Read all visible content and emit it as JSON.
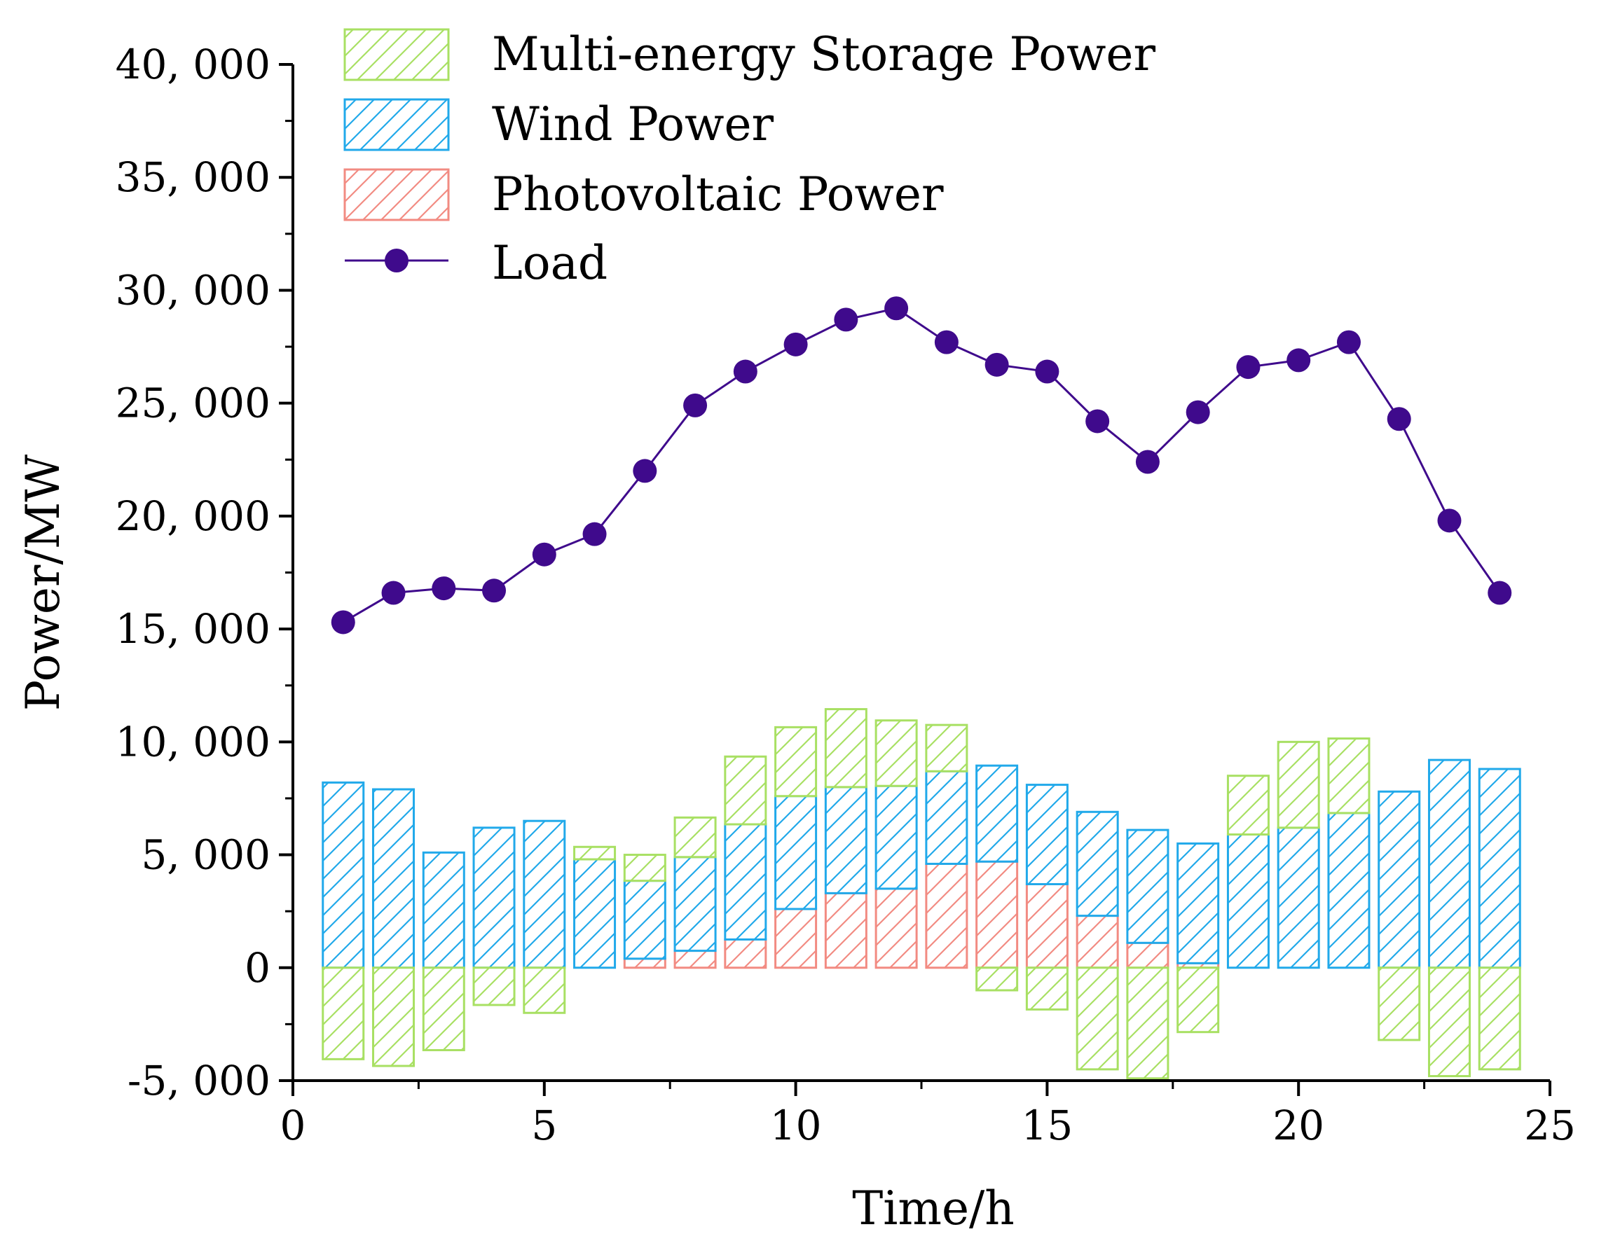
{
  "chart_data": {
    "type": "bar",
    "xlabel": "Time/h",
    "ylabel": "Power/MW",
    "xlim": [
      0,
      25
    ],
    "ylim": [
      -5000,
      40000
    ],
    "x_ticks": [
      0,
      5,
      10,
      15,
      20,
      25
    ],
    "x_tick_labels": [
      "0",
      "5",
      "10",
      "15",
      "20",
      "25"
    ],
    "y_ticks": [
      -5000,
      0,
      5000,
      10000,
      15000,
      20000,
      25000,
      30000,
      35000,
      40000
    ],
    "y_tick_labels": [
      "-5, 000",
      "0",
      "5, 000",
      "10, 000",
      "15, 000",
      "20, 000",
      "25, 000",
      "30, 000",
      "35, 000",
      "40, 000"
    ],
    "x": [
      1,
      2,
      3,
      4,
      5,
      6,
      7,
      8,
      9,
      10,
      11,
      12,
      13,
      14,
      15,
      16,
      17,
      18,
      19,
      20,
      21,
      22,
      23,
      24
    ],
    "legend_position": "top-left",
    "series": [
      {
        "name": "Multi-energy Storage Power",
        "kind": "stacked-bar",
        "color": "#a8e063",
        "values": [
          -4050,
          -4350,
          -3650,
          -1650,
          -2000,
          550,
          1150,
          1750,
          3000,
          3050,
          3450,
          2900,
          2050,
          -1000,
          -1850,
          -4500,
          -4900,
          -2850,
          2600,
          3800,
          3300,
          -3200,
          -4800,
          -4500
        ]
      },
      {
        "name": "Wind Power",
        "kind": "stacked-bar",
        "color": "#21a9ea",
        "values": [
          8200,
          7900,
          5100,
          6200,
          6500,
          4800,
          3450,
          4150,
          5100,
          5000,
          4700,
          4550,
          4100,
          4250,
          4400,
          4600,
          5000,
          5300,
          5900,
          6200,
          6850,
          7800,
          9200,
          8800
        ]
      },
      {
        "name": "Photovoltaic Power",
        "kind": "stacked-bar",
        "color": "#f28b82",
        "values": [
          0,
          0,
          0,
          0,
          0,
          0,
          400,
          750,
          1250,
          2600,
          3300,
          3500,
          4600,
          4700,
          3700,
          2300,
          1100,
          200,
          0,
          0,
          0,
          0,
          0,
          0
        ]
      },
      {
        "name": "Load",
        "kind": "line",
        "color": "#3f0a8c",
        "values": [
          15300,
          16600,
          16800,
          16700,
          18300,
          19200,
          22000,
          24900,
          26400,
          27600,
          28700,
          29200,
          27700,
          26700,
          26400,
          24200,
          22400,
          24600,
          26600,
          26900,
          27700,
          24300,
          19800,
          16600
        ]
      }
    ]
  }
}
